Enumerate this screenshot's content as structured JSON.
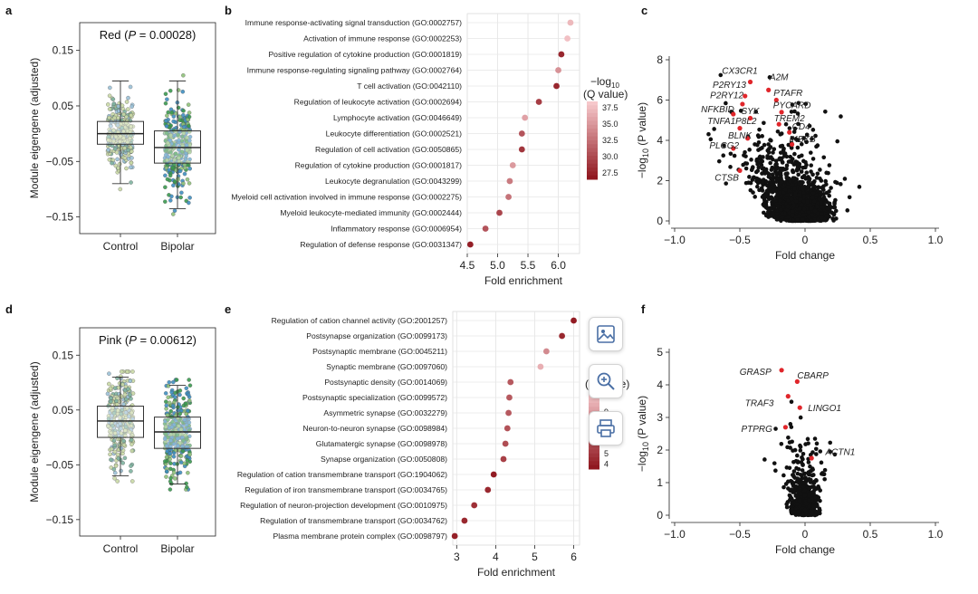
{
  "panel_letters": {
    "a": "a",
    "b": "b",
    "c": "c",
    "d": "d",
    "e": "e",
    "f": "f"
  },
  "toolbar": {
    "icons": [
      "image-icon",
      "zoom-in-icon",
      "print-icon"
    ]
  },
  "chart_data": [
    {
      "type": "box",
      "panel": "a",
      "title_prefix": "Red (",
      "title_p": "P",
      "title_suffix": " = 0.00028)",
      "ylabel": "Module eigengene (adjusted)",
      "categories": [
        "Control",
        "Bipolar"
      ],
      "yticks": [
        0.15,
        0.05,
        -0.05,
        -0.15
      ],
      "ytick_labels": [
        "0.15",
        "0.05",
        "−0.05",
        "−0.15"
      ],
      "ylim": [
        -0.18,
        0.2
      ],
      "boxes": [
        {
          "name": "Control",
          "q1": -0.019,
          "median": 0.0,
          "q3": 0.022,
          "whisker_low": -0.09,
          "whisker_high": 0.095
        },
        {
          "name": "Bipolar",
          "q1": -0.053,
          "median": -0.025,
          "q3": 0.005,
          "whisker_low": -0.135,
          "whisker_high": 0.095
        }
      ]
    },
    {
      "type": "dot",
      "panel": "b",
      "xlabel": "Fold enrichment",
      "xlim": [
        4.5,
        6.35
      ],
      "xticks": [
        4.5,
        5.0,
        5.5,
        6.0
      ],
      "xtick_labels": [
        "4.5",
        "5.0",
        "5.5",
        "6.0"
      ],
      "legend_title": "−log10 (Q value)",
      "legend_title_line1": "−log",
      "legend_title_sub": "10",
      "legend_title_line2": "(Q value)",
      "legend_ticks": [
        37.5,
        35.0,
        32.5,
        30.0,
        27.5
      ],
      "legend_tick_labels": [
        "37.5",
        "35.0",
        "32.5",
        "30.0",
        "27.5"
      ],
      "legend_range": [
        26.5,
        38.5
      ],
      "terms": [
        {
          "label": "Immune response-activating signal transduction (GO:0002757)",
          "x": 6.2,
          "q": 37.5
        },
        {
          "label": "Activation of immune response (GO:0002253)",
          "x": 6.15,
          "q": 38.0
        },
        {
          "label": "Positive regulation of cytokine production (GO:0001819)",
          "x": 6.05,
          "q": 28.0
        },
        {
          "label": "Immune response-regulating signaling pathway (GO:0002764)",
          "x": 6.0,
          "q": 35.0
        },
        {
          "label": "T cell activation (GO:0042110)",
          "x": 5.97,
          "q": 28.0
        },
        {
          "label": "Regulation of leukocyte activation (GO:0002694)",
          "x": 5.68,
          "q": 29.5
        },
        {
          "label": "Lymphocyte activation (GO:0046649)",
          "x": 5.45,
          "q": 36.0
        },
        {
          "label": "Leukocyte differentiation (GO:0002521)",
          "x": 5.4,
          "q": 31.0
        },
        {
          "label": "Regulation of cell activation (GO:0050865)",
          "x": 5.4,
          "q": 29.0
        },
        {
          "label": "Regulation of cytokine production (GO:0001817)",
          "x": 5.25,
          "q": 35.5
        },
        {
          "label": "Leukocyte degranulation (GO:0043299)",
          "x": 5.2,
          "q": 33.5
        },
        {
          "label": "Myeloid cell activation involved in immune response (GO:0002275)",
          "x": 5.18,
          "q": 33.0
        },
        {
          "label": "Myeloid leukocyte-mediated immunity (GO:0002444)",
          "x": 5.03,
          "q": 30.0
        },
        {
          "label": "Inflammatory response (GO:0006954)",
          "x": 4.8,
          "q": 31.0
        },
        {
          "label": "Regulation of defense response (GO:0031347)",
          "x": 4.55,
          "q": 27.5
        }
      ]
    },
    {
      "type": "scatter",
      "panel": "c",
      "xlabel": "Fold change",
      "ylabel": "−log10 (P value)",
      "ylabel_prefix": "−log",
      "ylabel_sub": "10",
      "ylabel_suffix": " (P value)",
      "xlim": [
        -1.0,
        1.0
      ],
      "ylim": [
        0,
        8
      ],
      "xticks": [
        -1.0,
        -0.5,
        0,
        0.5,
        1.0
      ],
      "xtick_labels": [
        "−1.0",
        "−0.5",
        "0",
        "0.5",
        "1.0"
      ],
      "yticks": [
        0,
        2,
        4,
        6,
        8
      ],
      "ytick_labels": [
        "0",
        "2",
        "4",
        "6",
        "8"
      ],
      "highlighted_genes": [
        {
          "label": "CX3CR1",
          "x": -0.42,
          "y": 6.9
        },
        {
          "label": "A2M",
          "x": -0.28,
          "y": 6.5
        },
        {
          "label": "P2RY13",
          "x": -0.46,
          "y": 6.2
        },
        {
          "label": "PTAFR",
          "x": -0.22,
          "y": 6.0
        },
        {
          "label": "P2RY12",
          "x": -0.48,
          "y": 5.8
        },
        {
          "label": "PYCARD",
          "x": -0.18,
          "y": 5.4
        },
        {
          "label": "SYK",
          "x": -0.42,
          "y": 5.1
        },
        {
          "label": "NFKBID",
          "x": -0.55,
          "y": 5.3
        },
        {
          "label": "TREM2",
          "x": -0.2,
          "y": 4.8
        },
        {
          "label": "TNFA1P8L2",
          "x": -0.5,
          "y": 4.6
        },
        {
          "label": "CD4",
          "x": -0.12,
          "y": 4.4
        },
        {
          "label": "BLNK",
          "x": -0.44,
          "y": 4.1
        },
        {
          "label": "IKBKB",
          "x": -0.1,
          "y": 3.8
        },
        {
          "label": "PLCG2",
          "x": -0.55,
          "y": 3.6
        },
        {
          "label": "CTSB",
          "x": -0.5,
          "y": 2.5
        }
      ],
      "point_count": 1850
    },
    {
      "type": "box",
      "panel": "d",
      "title_prefix": "Pink (",
      "title_p": "P",
      "title_suffix": " = 0.00612)",
      "ylabel": "Module eigengene (adjusted)",
      "categories": [
        "Control",
        "Bipolar"
      ],
      "yticks": [
        0.15,
        0.05,
        -0.05,
        -0.15
      ],
      "ytick_labels": [
        "0.15",
        "0.05",
        "−0.05",
        "−0.15"
      ],
      "ylim": [
        -0.18,
        0.2
      ],
      "boxes": [
        {
          "name": "Control",
          "q1": 0.0,
          "median": 0.03,
          "q3": 0.057,
          "whisker_low": -0.07,
          "whisker_high": 0.11
        },
        {
          "name": "Bipolar",
          "q1": -0.02,
          "median": 0.01,
          "q3": 0.037,
          "whisker_low": -0.085,
          "whisker_high": 0.095
        }
      ]
    },
    {
      "type": "dot",
      "panel": "e",
      "xlabel": "Fold enrichment",
      "xlim": [
        2.9,
        6.15
      ],
      "xticks": [
        3,
        4,
        5,
        6
      ],
      "xtick_labels": [
        "3",
        "4",
        "5",
        "6"
      ],
      "legend_title_line1": "−log",
      "legend_title_sub": "10",
      "legend_title_line2": "(Q value)",
      "legend_ticks": [
        9,
        5,
        4
      ],
      "legend_tick_labels": [
        "9",
        "5",
        "4"
      ],
      "legend_range": [
        3.5,
        11
      ],
      "terms": [
        {
          "label": "Regulation of cation channel activity (GO:2001257)",
          "x": 6.0,
          "q": 4.0
        },
        {
          "label": "Postsynapse organization (GO:0099173)",
          "x": 5.7,
          "q": 4.5
        },
        {
          "label": "Postsynaptic membrane (GO:0045211)",
          "x": 5.3,
          "q": 8.5
        },
        {
          "label": "Synaptic membrane (GO:0097060)",
          "x": 5.15,
          "q": 10.0
        },
        {
          "label": "Postsynaptic density (GO:0014069)",
          "x": 4.38,
          "q": 6.5
        },
        {
          "label": "Postsynaptic specialization (GO:0099572)",
          "x": 4.35,
          "q": 6.5
        },
        {
          "label": "Asymmetric synapse (GO:0032279)",
          "x": 4.33,
          "q": 6.5
        },
        {
          "label": "Neuron-to-neuron synapse (GO:0098984)",
          "x": 4.3,
          "q": 6.2
        },
        {
          "label": "Glutamatergic synapse (GO:0098978)",
          "x": 4.25,
          "q": 6.0
        },
        {
          "label": "Synapse organization (GO:0050808)",
          "x": 4.2,
          "q": 5.5
        },
        {
          "label": "Regulation of cation transmembrane transport (GO:1904062)",
          "x": 3.95,
          "q": 4.0
        },
        {
          "label": "Regulation of iron transmembrane transport (GO:0034765)",
          "x": 3.8,
          "q": 4.5
        },
        {
          "label": "Regulation of neuron-projection development (GO:0010975)",
          "x": 3.45,
          "q": 4.8
        },
        {
          "label": "Regulation of transmembrane transport (GO:0034762)",
          "x": 3.2,
          "q": 4.5
        },
        {
          "label": "Plasma membrane protein complex (GO:0098797)",
          "x": 2.95,
          "q": 4.2
        }
      ]
    },
    {
      "type": "scatter",
      "panel": "f",
      "xlabel": "Fold change",
      "ylabel_prefix": "−log",
      "ylabel_sub": "10",
      "ylabel_suffix": " (P value)",
      "xlim": [
        -1.0,
        1.0
      ],
      "ylim": [
        0,
        5
      ],
      "xticks": [
        -1.0,
        -0.5,
        0,
        0.5,
        1.0
      ],
      "xtick_labels": [
        "−1.0",
        "−0.5",
        "0",
        "0.5",
        "1.0"
      ],
      "yticks": [
        0,
        1,
        2,
        3,
        4,
        5
      ],
      "ytick_labels": [
        "0",
        "1",
        "2",
        "3",
        "4",
        "5"
      ],
      "highlighted_genes": [
        {
          "label": "GRASP",
          "x": -0.18,
          "y": 4.45
        },
        {
          "label": "CBARP",
          "x": -0.06,
          "y": 4.1
        },
        {
          "label": "TRAF3",
          "x": -0.13,
          "y": 3.65
        },
        {
          "label": "LINGO1",
          "x": -0.04,
          "y": 3.3
        },
        {
          "label": "PTPRG",
          "x": -0.15,
          "y": 2.7
        },
        {
          "label": "ACTN1",
          "x": 0.05,
          "y": 1.75
        }
      ],
      "point_count": 600
    }
  ]
}
